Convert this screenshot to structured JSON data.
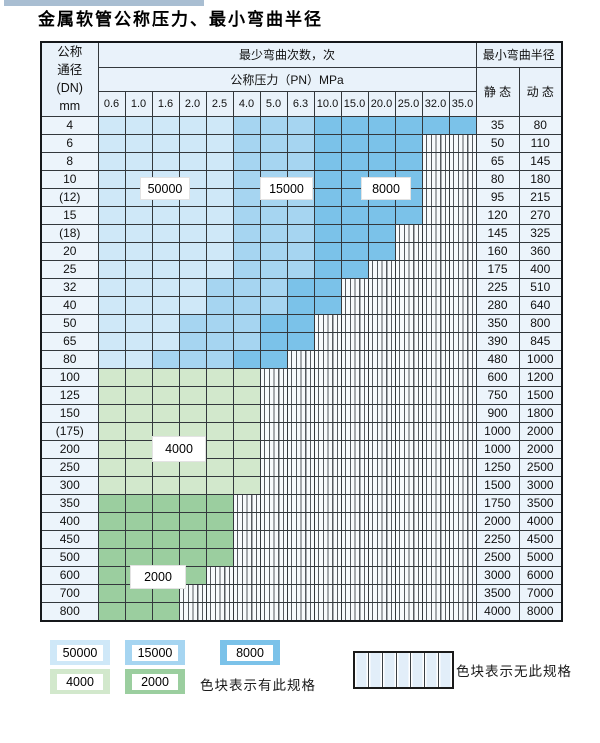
{
  "title": "金属软管公称压力、最小弯曲半径",
  "header": {
    "dn_lines": [
      "公称",
      "通径",
      "(DN)",
      "mm"
    ],
    "cycles_label": "最少弯曲次数，次",
    "pressure_label": "公称压力（PN）MPa",
    "radius_label": "最小弯曲半径",
    "static_label": "静 态",
    "dynamic_label": "动 态"
  },
  "pressure_columns": [
    "0.6",
    "1.0",
    "1.6",
    "2.0",
    "2.5",
    "4.0",
    "5.0",
    "6.3",
    "10.0",
    "15.0",
    "20.0",
    "25.0",
    "32.0",
    "35.0"
  ],
  "rows": [
    {
      "dn": "4",
      "avail": 14,
      "band": "b",
      "static": "35",
      "dynamic": "80"
    },
    {
      "dn": "6",
      "avail": 12,
      "band": "b",
      "static": "50",
      "dynamic": "110"
    },
    {
      "dn": "8",
      "avail": 12,
      "band": "b",
      "static": "65",
      "dynamic": "145"
    },
    {
      "dn": "10",
      "avail": 12,
      "band": "b",
      "static": "80",
      "dynamic": "180"
    },
    {
      "dn": "(12)",
      "avail": 12,
      "band": "b",
      "static": "95",
      "dynamic": "215"
    },
    {
      "dn": "15",
      "avail": 12,
      "band": "b",
      "static": "120",
      "dynamic": "270"
    },
    {
      "dn": "(18)",
      "avail": 11,
      "band": "b",
      "static": "145",
      "dynamic": "325"
    },
    {
      "dn": "20",
      "avail": 11,
      "band": "b",
      "static": "160",
      "dynamic": "360"
    },
    {
      "dn": "25",
      "avail": 10,
      "band": "b",
      "static": "175",
      "dynamic": "400"
    },
    {
      "dn": "32",
      "avail": 9,
      "band": "b",
      "static": "225",
      "dynamic": "510"
    },
    {
      "dn": "40",
      "avail": 9,
      "band": "b",
      "static": "280",
      "dynamic": "640"
    },
    {
      "dn": "50",
      "avail": 8,
      "band": "b",
      "static": "350",
      "dynamic": "800"
    },
    {
      "dn": "65",
      "avail": 8,
      "band": "b",
      "static": "390",
      "dynamic": "845"
    },
    {
      "dn": "80",
      "avail": 7,
      "band": "b",
      "static": "480",
      "dynamic": "1000"
    },
    {
      "dn": "100",
      "avail": 6,
      "band": "g1",
      "static": "600",
      "dynamic": "1200"
    },
    {
      "dn": "125",
      "avail": 6,
      "band": "g1",
      "static": "750",
      "dynamic": "1500"
    },
    {
      "dn": "150",
      "avail": 6,
      "band": "g1",
      "static": "900",
      "dynamic": "1800"
    },
    {
      "dn": "(175)",
      "avail": 6,
      "band": "g1",
      "static": "1000",
      "dynamic": "2000"
    },
    {
      "dn": "200",
      "avail": 6,
      "band": "g1",
      "static": "1000",
      "dynamic": "2000"
    },
    {
      "dn": "250",
      "avail": 6,
      "band": "g1",
      "static": "1250",
      "dynamic": "2500"
    },
    {
      "dn": "300",
      "avail": 6,
      "band": "g1",
      "static": "1500",
      "dynamic": "3000"
    },
    {
      "dn": "350",
      "avail": 5,
      "band": "g2",
      "static": "1750",
      "dynamic": "3500"
    },
    {
      "dn": "400",
      "avail": 5,
      "band": "g2",
      "static": "2000",
      "dynamic": "4000"
    },
    {
      "dn": "450",
      "avail": 5,
      "band": "g2",
      "static": "2250",
      "dynamic": "4500"
    },
    {
      "dn": "500",
      "avail": 5,
      "band": "g2",
      "static": "2500",
      "dynamic": "5000"
    },
    {
      "dn": "600",
      "avail": 4,
      "band": "g2",
      "static": "3000",
      "dynamic": "6000"
    },
    {
      "dn": "700",
      "avail": 3,
      "band": "g2",
      "static": "3500",
      "dynamic": "7000"
    },
    {
      "dn": "800",
      "avail": 3,
      "band": "g2",
      "static": "4000",
      "dynamic": "8000"
    }
  ],
  "overlays": {
    "l50000": "50000",
    "l15000": "15000",
    "l8000": "8000",
    "l4000": "4000",
    "l2000": "2000"
  },
  "legend": {
    "items": [
      {
        "label": "50000",
        "color": "#cfe8f8"
      },
      {
        "label": "15000",
        "color": "#a6d5f1"
      },
      {
        "label": "8000",
        "color": "#7bc2e9"
      },
      {
        "label": "4000",
        "color": "#d2e8cc"
      },
      {
        "label": "2000",
        "color": "#9bce9f"
      }
    ],
    "note_exists": "色块表示有此规格",
    "note_absent": "色块表示无此规格"
  },
  "colors": {
    "blue_light": "#cfe8f8",
    "blue_mid": "#a6d5f1",
    "blue_dark": "#7bc2e9",
    "green_light": "#d2e8cc",
    "green_dark": "#9bce9f",
    "header_bg": "#e9f2fa",
    "side_bg": "#ecf4fb",
    "grid": "#33383c"
  },
  "chart_data": {
    "type": "table",
    "title": "金属软管公称压力、最小弯曲半径",
    "columns_PN_MPa": [
      0.6,
      1.0,
      1.6,
      2.0,
      2.5,
      4.0,
      5.0,
      6.3,
      10.0,
      15.0,
      20.0,
      25.0,
      32.0,
      35.0
    ],
    "rows": [
      {
        "dn": "4",
        "max_available_PN": 35.0,
        "static_radius": 35,
        "dynamic_radius": 80
      },
      {
        "dn": "6",
        "max_available_PN": 25.0,
        "static_radius": 50,
        "dynamic_radius": 110
      },
      {
        "dn": "8",
        "max_available_PN": 25.0,
        "static_radius": 65,
        "dynamic_radius": 145
      },
      {
        "dn": "10",
        "max_available_PN": 25.0,
        "static_radius": 80,
        "dynamic_radius": 180
      },
      {
        "dn": "(12)",
        "max_available_PN": 25.0,
        "static_radius": 95,
        "dynamic_radius": 215
      },
      {
        "dn": "15",
        "max_available_PN": 25.0,
        "static_radius": 120,
        "dynamic_radius": 270
      },
      {
        "dn": "(18)",
        "max_available_PN": 20.0,
        "static_radius": 145,
        "dynamic_radius": 325
      },
      {
        "dn": "20",
        "max_available_PN": 20.0,
        "static_radius": 160,
        "dynamic_radius": 360
      },
      {
        "dn": "25",
        "max_available_PN": 15.0,
        "static_radius": 175,
        "dynamic_radius": 400
      },
      {
        "dn": "32",
        "max_available_PN": 10.0,
        "static_radius": 225,
        "dynamic_radius": 510
      },
      {
        "dn": "40",
        "max_available_PN": 10.0,
        "static_radius": 280,
        "dynamic_radius": 640
      },
      {
        "dn": "50",
        "max_available_PN": 6.3,
        "static_radius": 350,
        "dynamic_radius": 800
      },
      {
        "dn": "65",
        "max_available_PN": 6.3,
        "static_radius": 390,
        "dynamic_radius": 845
      },
      {
        "dn": "80",
        "max_available_PN": 5.0,
        "static_radius": 480,
        "dynamic_radius": 1000
      },
      {
        "dn": "100",
        "max_available_PN": 4.0,
        "static_radius": 600,
        "dynamic_radius": 1200
      },
      {
        "dn": "125",
        "max_available_PN": 4.0,
        "static_radius": 750,
        "dynamic_radius": 1500
      },
      {
        "dn": "150",
        "max_available_PN": 4.0,
        "static_radius": 900,
        "dynamic_radius": 1800
      },
      {
        "dn": "(175)",
        "max_available_PN": 4.0,
        "static_radius": 1000,
        "dynamic_radius": 2000
      },
      {
        "dn": "200",
        "max_available_PN": 4.0,
        "static_radius": 1000,
        "dynamic_radius": 2000
      },
      {
        "dn": "250",
        "max_available_PN": 4.0,
        "static_radius": 1250,
        "dynamic_radius": 2500
      },
      {
        "dn": "300",
        "max_available_PN": 4.0,
        "static_radius": 1500,
        "dynamic_radius": 3000
      },
      {
        "dn": "350",
        "max_available_PN": 2.5,
        "static_radius": 1750,
        "dynamic_radius": 3500
      },
      {
        "dn": "400",
        "max_available_PN": 2.5,
        "static_radius": 2000,
        "dynamic_radius": 4000
      },
      {
        "dn": "450",
        "max_available_PN": 2.5,
        "static_radius": 2250,
        "dynamic_radius": 4500
      },
      {
        "dn": "500",
        "max_available_PN": 2.5,
        "static_radius": 2500,
        "dynamic_radius": 5000
      },
      {
        "dn": "600",
        "max_available_PN": 2.0,
        "static_radius": 3000,
        "dynamic_radius": 6000
      },
      {
        "dn": "700",
        "max_available_PN": 1.6,
        "static_radius": 3500,
        "dynamic_radius": 7000
      },
      {
        "dn": "800",
        "max_available_PN": 1.6,
        "static_radius": 4000,
        "dynamic_radius": 8000
      }
    ],
    "bend_cycle_color_zones": [
      {
        "cycles": 50000,
        "color": "#cfe8f8"
      },
      {
        "cycles": 15000,
        "color": "#a6d5f1"
      },
      {
        "cycles": 8000,
        "color": "#7bc2e9"
      },
      {
        "cycles": 4000,
        "color": "#d2e8cc"
      },
      {
        "cycles": 2000,
        "color": "#9bce9f"
      }
    ],
    "legend_notes": [
      "色块表示有此规格",
      "色块表示无此规格"
    ]
  }
}
